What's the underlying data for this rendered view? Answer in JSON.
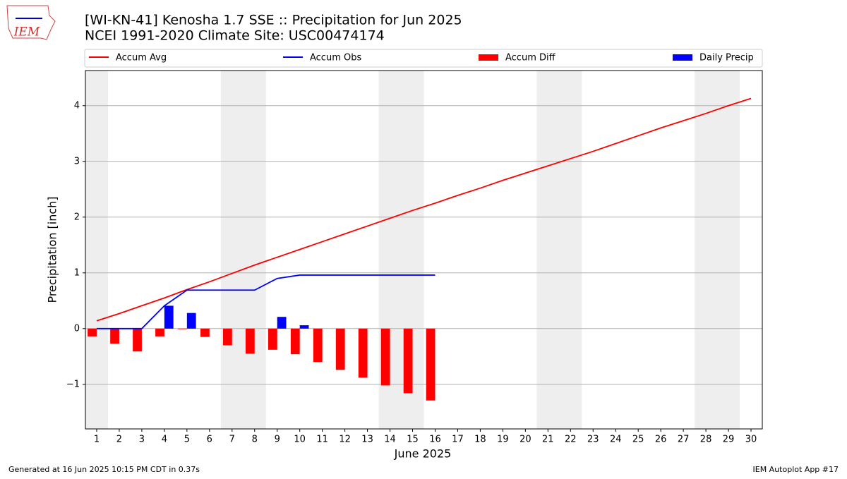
{
  "logo_text": "IEM",
  "chart_data": {
    "type": "combo",
    "title": "[WI-KN-41] Kenosha 1.7 SSE :: Precipitation for Jun 2025",
    "subtitle": "NCEI 1991-2020 Climate Site: USC00474174",
    "x_label": "June 2025",
    "y_label": "Precipitation [inch]",
    "x": [
      1,
      2,
      3,
      4,
      5,
      6,
      7,
      8,
      9,
      10,
      11,
      12,
      13,
      14,
      15,
      16,
      17,
      18,
      19,
      20,
      21,
      22,
      23,
      24,
      25,
      26,
      27,
      28,
      29,
      30
    ],
    "xlim": [
      0.5,
      30.5
    ],
    "xticks": [
      1,
      2,
      3,
      4,
      5,
      6,
      7,
      8,
      9,
      10,
      11,
      12,
      13,
      14,
      15,
      16,
      17,
      18,
      19,
      20,
      21,
      22,
      23,
      24,
      25,
      26,
      27,
      28,
      29,
      30
    ],
    "ylim": [
      -1.8,
      4.63
    ],
    "yticks": [
      {
        "value": -1,
        "label": "−1"
      },
      0,
      1,
      2,
      3,
      4
    ],
    "grid": true,
    "shaded_x_ranges": [
      [
        0.5,
        1.5
      ],
      [
        6.5,
        8.5
      ],
      [
        13.5,
        15.5
      ],
      [
        20.5,
        22.5
      ],
      [
        27.5,
        29.5
      ]
    ],
    "shade_color": "#eeeeee",
    "series": [
      {
        "name": "Accum Avg",
        "kind": "line",
        "color": "#ff0000",
        "values": [
          0.14,
          0.27,
          0.41,
          0.55,
          0.7,
          0.84,
          0.99,
          1.14,
          1.28,
          1.42,
          1.56,
          1.7,
          1.84,
          1.98,
          2.12,
          2.25,
          2.39,
          2.52,
          2.66,
          2.79,
          2.92,
          3.05,
          3.18,
          3.32,
          3.46,
          3.6,
          3.73,
          3.86,
          4.0,
          4.13
        ]
      },
      {
        "name": "Accum Obs",
        "kind": "line",
        "color": "#0000ff",
        "values": [
          0,
          0,
          0,
          0.41,
          0.69,
          0.69,
          0.69,
          0.69,
          0.9,
          0.96,
          0.96,
          0.96,
          0.96,
          0.96,
          0.96,
          0.96,
          null,
          null,
          null,
          null,
          null,
          null,
          null,
          null,
          null,
          null,
          null,
          null,
          null,
          null
        ]
      },
      {
        "name": "Accum Diff",
        "kind": "bar",
        "color": "#ff0000",
        "values": [
          -0.14,
          -0.27,
          -0.41,
          -0.14,
          -0.01,
          -0.15,
          -0.3,
          -0.45,
          -0.38,
          -0.46,
          -0.6,
          -0.74,
          -0.88,
          -1.02,
          -1.16,
          -1.29,
          null,
          null,
          null,
          null,
          null,
          null,
          null,
          null,
          null,
          null,
          null,
          null,
          null,
          null
        ]
      },
      {
        "name": "Daily Precip",
        "kind": "bar",
        "color": "#0000ff",
        "values": [
          0,
          0,
          0,
          0.41,
          0.28,
          0,
          0,
          0,
          0.21,
          0.06,
          0,
          0,
          0,
          0,
          0,
          0,
          null,
          null,
          null,
          null,
          null,
          null,
          null,
          null,
          null,
          null,
          null,
          null,
          null,
          null
        ]
      }
    ],
    "footer_left": "Generated at 16 Jun 2025 10:15 PM CDT in 0.37s",
    "footer_right": "IEM Autoplot App #17"
  }
}
